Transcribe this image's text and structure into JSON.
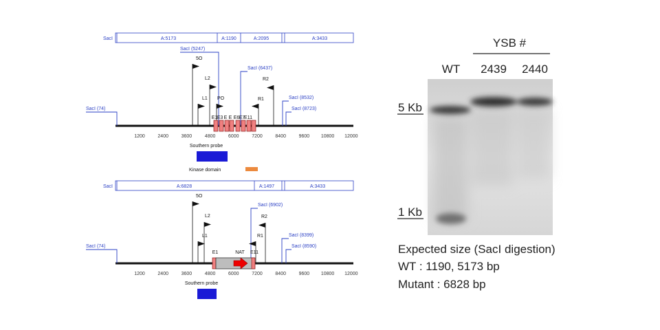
{
  "top_map": {
    "origin_label": "SacI",
    "segments": [
      "A:5173",
      "A:1190",
      "A:2095",
      "A:3433"
    ],
    "sites": [
      "SacI (74)",
      "SacI (5247)",
      "SacI (6437)",
      "SacI (8532)",
      "SacI (8723)"
    ],
    "primers": [
      "5O",
      "L2",
      "L1",
      "PO",
      "R2",
      "R1"
    ],
    "exons": [
      "E1",
      "E3",
      "E",
      "E",
      "E6",
      "E7",
      "E11"
    ],
    "axis_ticks": [
      "1200",
      "2400",
      "3600",
      "4800",
      "6000",
      "7200",
      "8400",
      "9600",
      "10800",
      "12000"
    ],
    "probe_label": "Southern probe"
  },
  "legend": {
    "label": "Kinase domain"
  },
  "bottom_map": {
    "origin_label": "SacI",
    "segments": [
      "A:6828",
      "A:1497",
      "A:3433"
    ],
    "sites": [
      "SacI (74)",
      "SacI (6902)",
      "SacI (8399)",
      "SacI (8590)"
    ],
    "primers": [
      "5O",
      "L2",
      "L1",
      "R2",
      "R1"
    ],
    "exons": [
      "E1",
      "NAT",
      "E11"
    ],
    "axis_ticks": [
      "1200",
      "2400",
      "3600",
      "4800",
      "6000",
      "7200",
      "8400",
      "9600",
      "10800",
      "12000"
    ],
    "probe_label": "Southern probe"
  },
  "gel": {
    "group_label": "YSB #",
    "lanes": [
      "WT",
      "2439",
      "2440"
    ],
    "markers": [
      "5 Kb",
      "1 Kb"
    ]
  },
  "notes": [
    "Expected size (SacI digestion)",
    "WT : 1190, 5173 bp",
    "Mutant : 6828 bp"
  ]
}
